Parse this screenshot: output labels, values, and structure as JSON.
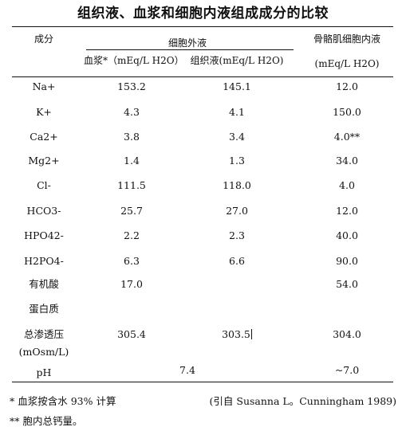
{
  "title": "组织液、血浆和细胞内液组成成分的比较",
  "header": {
    "component": "成分",
    "extracellular": "细胞外液",
    "plasma": "血浆*（mEq/L H2O）",
    "interstitial": "组织液(mEq/L H2O)",
    "intracellular": "骨骼肌细胞内液",
    "intracellular_unit": "(mEq/L H2O)"
  },
  "rows": [
    {
      "component": "Na+",
      "plasma": "153.2",
      "interstitial": "145.1",
      "intracellular": "12.0"
    },
    {
      "component": "K+",
      "plasma": "4.3",
      "interstitial": "4.1",
      "intracellular": "150.0"
    },
    {
      "component": "Ca2+",
      "plasma": "3.8",
      "interstitial": "3.4",
      "intracellular": "4.0**"
    },
    {
      "component": "Mg2+",
      "plasma": "1.4",
      "interstitial": "1.3",
      "intracellular": "34.0"
    },
    {
      "component": "Cl-",
      "plasma": "111.5",
      "interstitial": "118.0",
      "intracellular": "4.0"
    },
    {
      "component": "HCO3-",
      "plasma": "25.7",
      "interstitial": "27.0",
      "intracellular": "12.0"
    },
    {
      "component": "HPO42-",
      "plasma": "2.2",
      "interstitial": "2.3",
      "intracellular": "40.0"
    },
    {
      "component": "H2PO4-",
      "plasma": "6.3",
      "interstitial": "6.6",
      "intracellular": "90.0"
    },
    {
      "component": "有机酸",
      "plasma": "17.0",
      "interstitial": "",
      "intracellular": "54.0"
    },
    {
      "component": "蛋白质",
      "plasma": "",
      "interstitial": "",
      "intracellular": ""
    },
    {
      "component": "总渗透压",
      "plasma": "305.4",
      "interstitial": "303.5",
      "intracellular": "304.0"
    },
    {
      "component": "(mOsm/L)",
      "plasma": "",
      "interstitial": "",
      "intracellular": ""
    }
  ],
  "ph": {
    "label": "pH",
    "extracellular": "7.4",
    "intracellular": "~7.0"
  },
  "notes": {
    "note1": "* 血浆按含水 93% 计算",
    "citation": "(引自 Susanna L。Cunningham 1989)",
    "note2": "** 胞内总钙量。"
  }
}
